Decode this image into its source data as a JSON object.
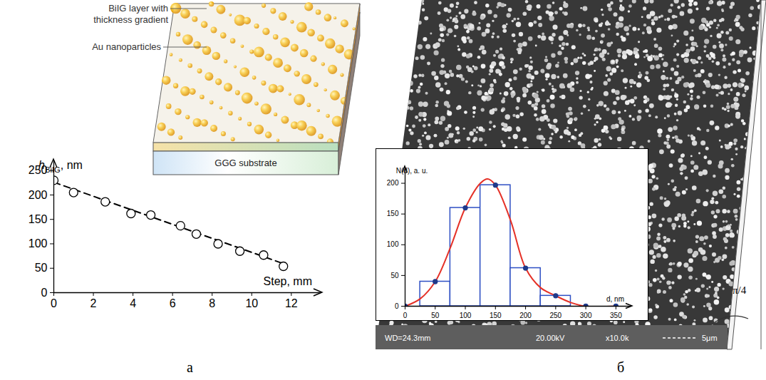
{
  "panel_labels": [
    "а",
    "б"
  ],
  "schematic": {
    "layer_label": "BiIG layer with thickness gradient",
    "particles_label": "Au nanoparticles",
    "substrate_label": "GGG substrate"
  },
  "sem_image": {
    "info": [
      "WD=24.3mm",
      "20.00kV",
      "x10.0k",
      "5μm"
    ],
    "angle_label": "π/4"
  },
  "chart_data": [
    {
      "type": "scatter",
      "xlabel": "Step, mm",
      "ylabel": "hBiIG, nm",
      "xlim": [
        0,
        13.5
      ],
      "xticks": [
        0,
        2,
        4,
        6,
        8,
        10,
        12
      ],
      "ylim": [
        0,
        270
      ],
      "yticks": [
        0,
        50,
        100,
        150,
        200,
        250
      ],
      "grid": false,
      "series": [
        {
          "type": "line",
          "line_style": "dashed",
          "color": "#000000",
          "x": [
            0,
            11.7
          ],
          "values": [
            226,
            58
          ]
        },
        {
          "type": "scatter",
          "marker": "open circle",
          "color": "#000000",
          "x": [
            0,
            1.0,
            2.6,
            3.9,
            4.9,
            6.4,
            7.2,
            8.3,
            9.4,
            10.6,
            11.6
          ],
          "values": [
            230,
            205,
            186,
            162,
            159,
            137,
            120,
            100,
            85,
            77,
            54
          ]
        }
      ]
    },
    {
      "type": "histogram",
      "xlabel": "d, nm",
      "ylabel": "N(d), a. u.",
      "bins": [
        25,
        75,
        125,
        175,
        225,
        275
      ],
      "counts": [
        40,
        160,
        197,
        62,
        17
      ],
      "color": "#2e4fc4",
      "xlim": [
        0,
        375
      ],
      "xticks": [
        0,
        50,
        100,
        150,
        200,
        250,
        300,
        350
      ],
      "ylim": [
        0,
        225
      ],
      "yticks": [
        0,
        50,
        100,
        150,
        200
      ],
      "grid": false,
      "series": [
        {
          "type": "line",
          "color": "#e53127",
          "x": [
            0,
            25,
            50,
            75,
            100,
            125,
            137,
            150,
            175,
            200,
            225,
            250,
            275,
            300,
            350
          ],
          "values": [
            0,
            12,
            40,
            95,
            160,
            200,
            207,
            197,
            140,
            62,
            30,
            17,
            6,
            0,
            0
          ]
        },
        {
          "type": "scatter",
          "marker": "circle",
          "color": "#1f3a8a",
          "x": [
            0,
            50,
            100,
            150,
            200,
            250,
            300,
            350
          ],
          "values": [
            0,
            40,
            160,
            197,
            62,
            17,
            0,
            0
          ]
        }
      ]
    }
  ]
}
